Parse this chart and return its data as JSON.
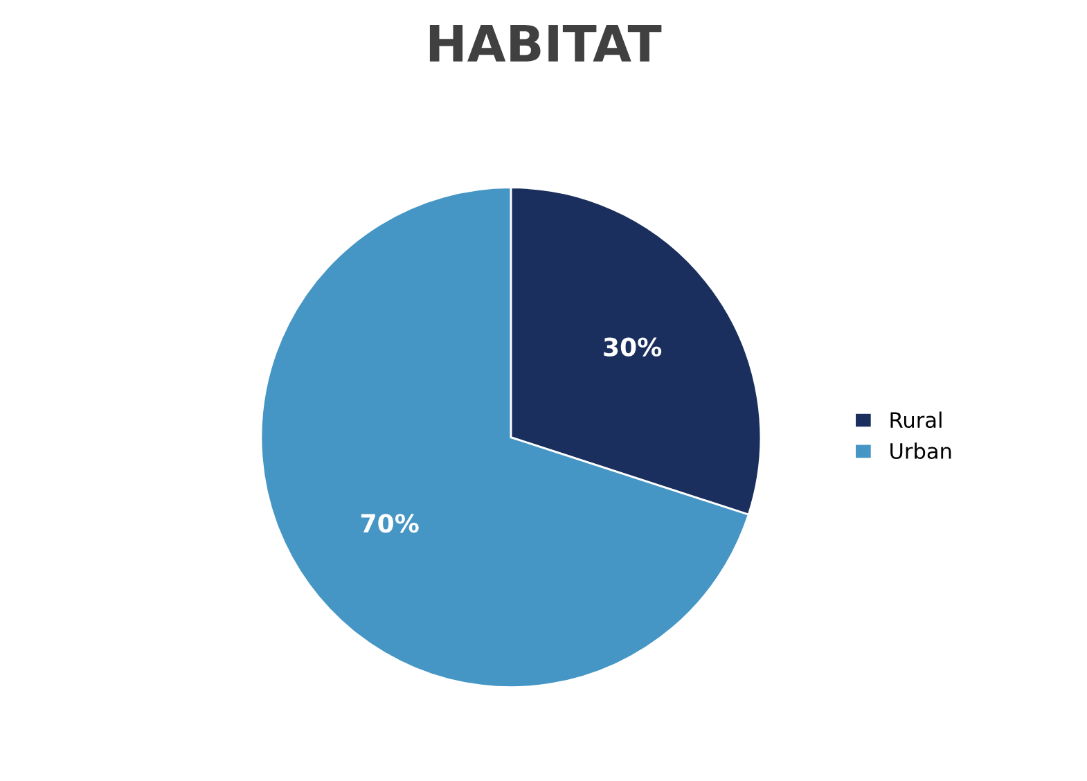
{
  "chart_data": {
    "type": "pie",
    "title": "HABITAT",
    "categories": [
      "Rural",
      "Urban"
    ],
    "values": [
      30,
      70
    ],
    "colors": [
      "#1b2f5e",
      "#4596c4"
    ],
    "value_labels": [
      "30%",
      "70%"
    ],
    "legend": "right"
  }
}
